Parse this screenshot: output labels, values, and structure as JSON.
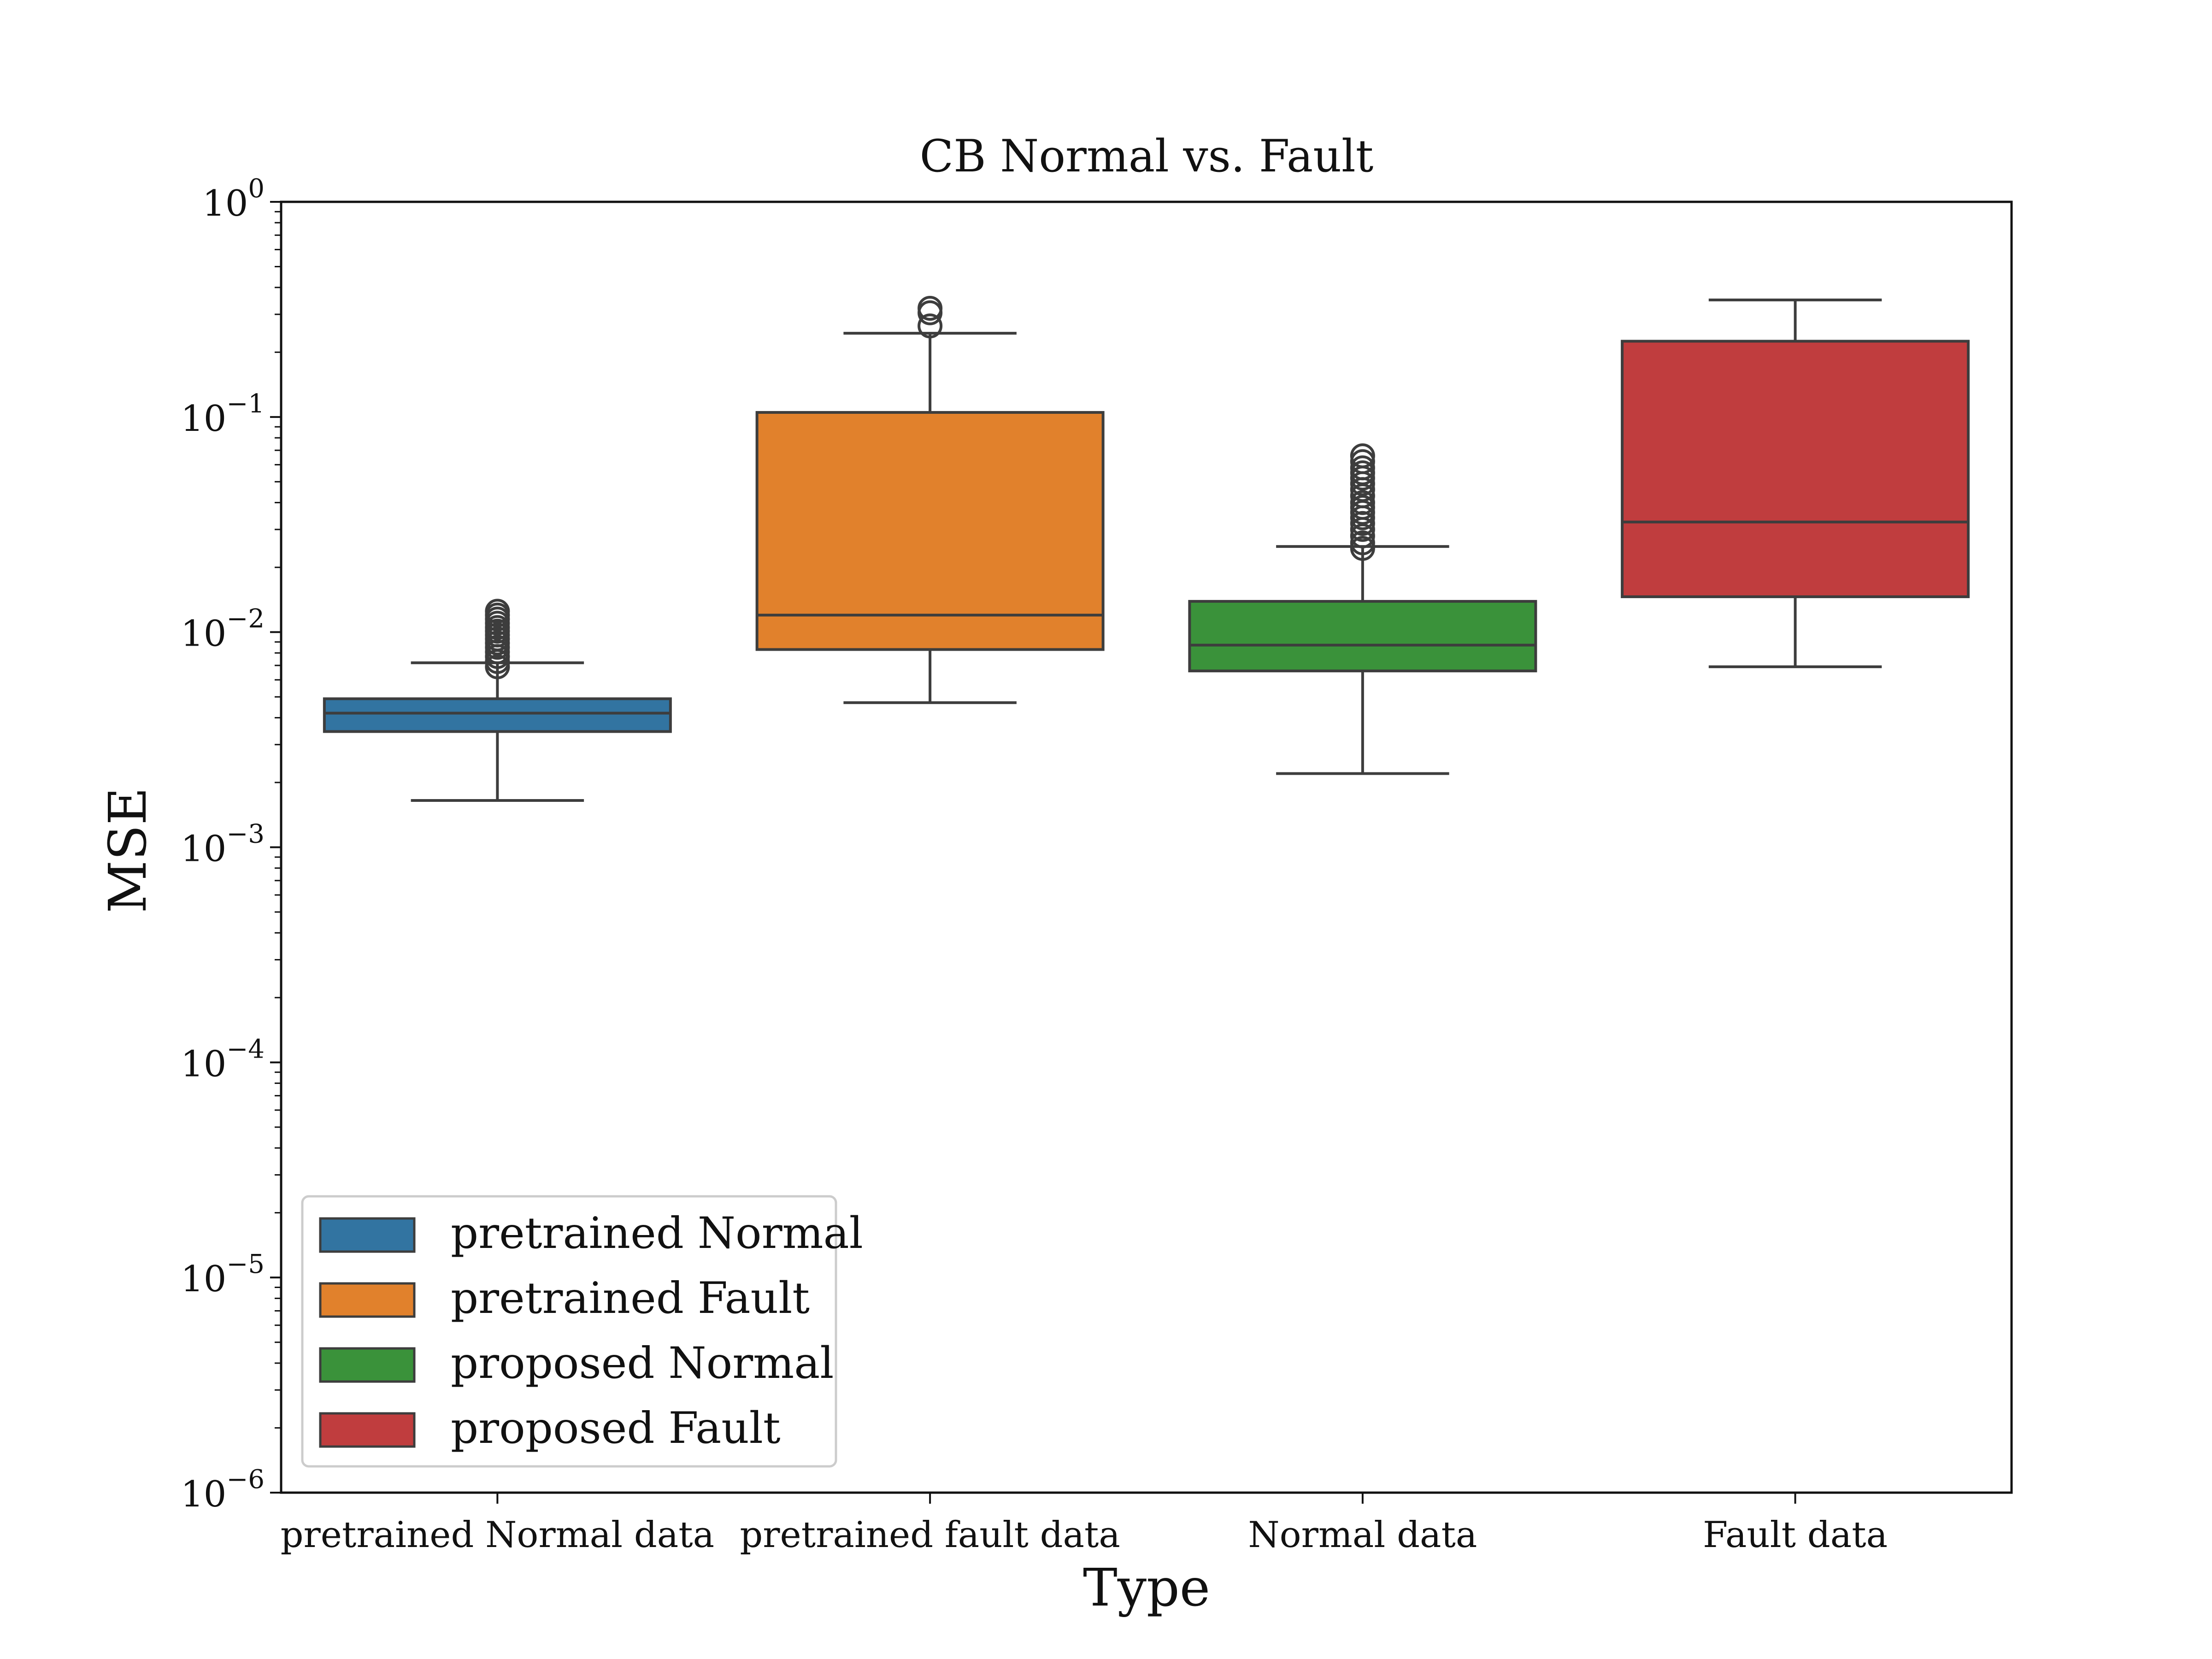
{
  "chart_data": {
    "type": "box",
    "title": "CB Normal vs. Fault",
    "xlabel": "Type",
    "ylabel": "MSE",
    "yscale": "log",
    "ylim": [
      1e-06,
      1
    ],
    "yticks": [
      {
        "value": 1,
        "base": "10",
        "exp": "0"
      },
      {
        "value": 0.1,
        "base": "10",
        "exp": "−1"
      },
      {
        "value": 0.01,
        "base": "10",
        "exp": "−2"
      },
      {
        "value": 0.001,
        "base": "10",
        "exp": "−3"
      },
      {
        "value": 0.0001,
        "base": "10",
        "exp": "−4"
      },
      {
        "value": 1e-05,
        "base": "10",
        "exp": "−5"
      },
      {
        "value": 1e-06,
        "base": "10",
        "exp": "−6"
      }
    ],
    "categories": [
      "pretrained Normal data",
      "pretrained fault data",
      "Normal data",
      "Fault data"
    ],
    "legend_position": "lower-left",
    "series": [
      {
        "name": "pretrained Normal",
        "color": "#3274a1",
        "whisker_low": 0.00165,
        "q1": 0.00345,
        "median": 0.0042,
        "q3": 0.0049,
        "whisker_high": 0.0072,
        "outliers": [
          0.0069,
          0.0073,
          0.0077,
          0.0081,
          0.0085,
          0.0089,
          0.0093,
          0.0097,
          0.0101,
          0.0105,
          0.011,
          0.0115,
          0.012,
          0.0125
        ]
      },
      {
        "name": "pretrained Fault",
        "color": "#e1812c",
        "whisker_low": 0.0047,
        "q1": 0.0083,
        "median": 0.012,
        "q3": 0.105,
        "whisker_high": 0.245,
        "outliers": [
          0.265,
          0.305,
          0.32
        ]
      },
      {
        "name": "proposed Normal",
        "color": "#3a923a",
        "whisker_low": 0.0022,
        "q1": 0.0066,
        "median": 0.0087,
        "q3": 0.0139,
        "whisker_high": 0.025,
        "outliers": [
          0.0245,
          0.026,
          0.028,
          0.03,
          0.032,
          0.034,
          0.036,
          0.038,
          0.04,
          0.043,
          0.046,
          0.049,
          0.052,
          0.055,
          0.058,
          0.062,
          0.066
        ]
      },
      {
        "name": "proposed Fault",
        "color": "#c03d3e",
        "whisker_low": 0.0069,
        "q1": 0.0146,
        "median": 0.0325,
        "q3": 0.225,
        "whisker_high": 0.35,
        "outliers": []
      }
    ]
  }
}
